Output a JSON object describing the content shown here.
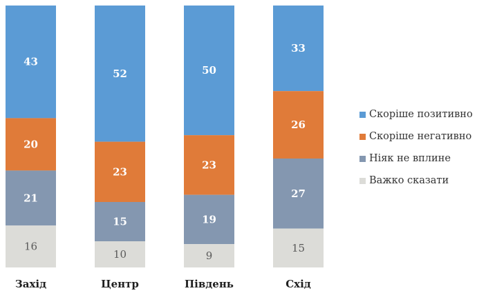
{
  "chart_data": {
    "type": "bar",
    "stacked": true,
    "categories": [
      "Захід",
      "Центр",
      "Південь",
      "Схід"
    ],
    "series": [
      {
        "name": "Скоріше позитивно",
        "values": [
          43,
          52,
          50,
          33
        ],
        "color": "#5b9bd5",
        "label_style": "light-text-bold"
      },
      {
        "name": "Скоріше негативно",
        "values": [
          20,
          23,
          23,
          26
        ],
        "color": "#e07b39",
        "label_style": "light-text-bold"
      },
      {
        "name": "Ніяк не вплине",
        "values": [
          21,
          15,
          19,
          27
        ],
        "color": "#8497b0",
        "label_style": "light-text-bold"
      },
      {
        "name": "Важко сказати",
        "values": [
          16,
          10,
          9,
          15
        ],
        "color": "#dcdcd8",
        "label_style": "dark-text"
      }
    ],
    "title": "",
    "xlabel": "",
    "ylabel": "",
    "ylim": [
      0,
      100
    ],
    "grid": false,
    "legend": "right"
  }
}
